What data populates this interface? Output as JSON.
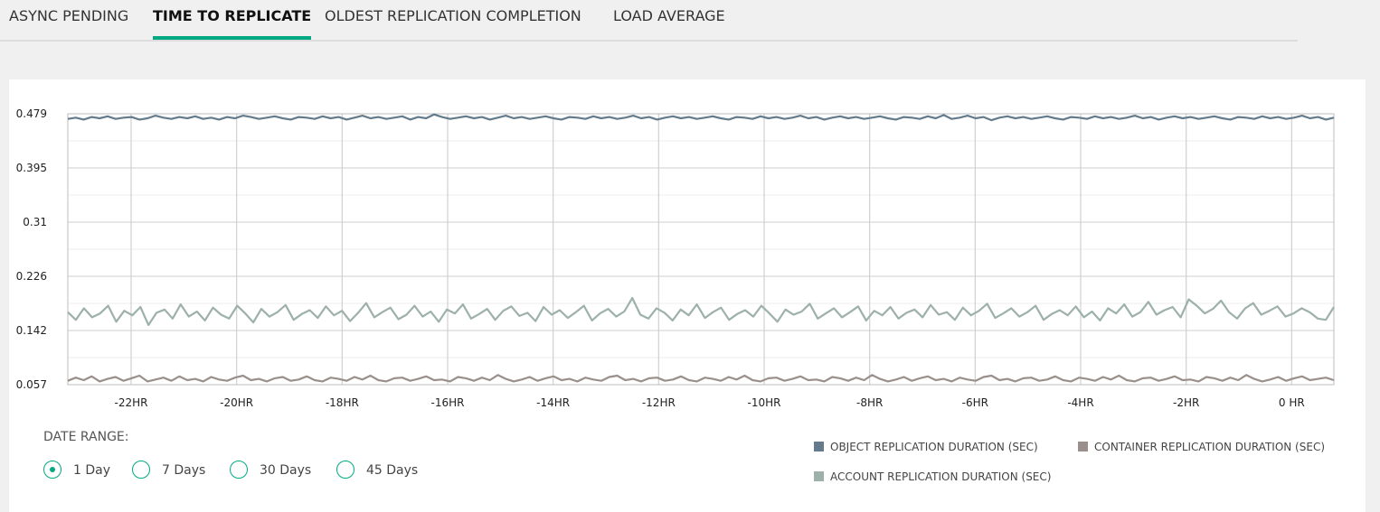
{
  "tabs": [
    {
      "label": "ASYNC PENDING",
      "active": false
    },
    {
      "label": "TIME TO REPLICATE",
      "active": true
    },
    {
      "label": "OLDEST REPLICATION COMPLETION",
      "active": false
    },
    {
      "label": "LOAD AVERAGE",
      "active": false
    }
  ],
  "date_range": {
    "label": "DATE RANGE:",
    "options": [
      {
        "label": "1 Day",
        "selected": true
      },
      {
        "label": "7 Days",
        "selected": false
      },
      {
        "label": "30 Days",
        "selected": false
      },
      {
        "label": "45 Days",
        "selected": false
      }
    ]
  },
  "colors": {
    "accent": "#01a982",
    "object": "#647b8c",
    "container": "#9a8f8a",
    "account": "#9db0aa"
  },
  "chart_data": {
    "type": "line",
    "title": "",
    "xlabel": "",
    "ylabel": "",
    "x_range_hours": [
      -23.2,
      0.8
    ],
    "ylim": [
      0.057,
      0.479
    ],
    "y_ticks": [
      "0.479",
      "0.395",
      "0.31",
      "0.226",
      "0.142",
      "0.057"
    ],
    "x_ticks": [
      {
        "hour": -22,
        "label": "-22HR"
      },
      {
        "hour": -20,
        "label": "-20HR"
      },
      {
        "hour": -18,
        "label": "-18HR"
      },
      {
        "hour": -16,
        "label": "-16HR"
      },
      {
        "hour": -14,
        "label": "-14HR"
      },
      {
        "hour": -12,
        "label": "-12HR"
      },
      {
        "hour": -10,
        "label": "-10HR"
      },
      {
        "hour": -8,
        "label": "-8HR"
      },
      {
        "hour": -6,
        "label": "-6HR"
      },
      {
        "hour": -4,
        "label": "-4HR"
      },
      {
        "hour": -2,
        "label": "-2HR"
      },
      {
        "hour": 0,
        "label": "0 HR"
      }
    ],
    "grid": true,
    "legend_position": "bottom-right",
    "series": [
      {
        "name": "OBJECT REPLICATION DURATION (SEC)",
        "color": "#647b8c",
        "values": [
          0.471,
          0.473,
          0.47,
          0.474,
          0.472,
          0.475,
          0.471,
          0.473,
          0.474,
          0.47,
          0.472,
          0.476,
          0.473,
          0.471,
          0.474,
          0.472,
          0.475,
          0.471,
          0.473,
          0.47,
          0.474,
          0.472,
          0.476,
          0.474,
          0.471,
          0.473,
          0.475,
          0.472,
          0.47,
          0.474,
          0.473,
          0.471,
          0.475,
          0.472,
          0.474,
          0.47,
          0.473,
          0.476,
          0.472,
          0.474,
          0.471,
          0.473,
          0.475,
          0.47,
          0.474,
          0.472,
          0.478,
          0.474,
          0.471,
          0.473,
          0.475,
          0.472,
          0.474,
          0.47,
          0.473,
          0.476,
          0.472,
          0.474,
          0.471,
          0.473,
          0.475,
          0.472,
          0.47,
          0.474,
          0.473,
          0.471,
          0.475,
          0.472,
          0.474,
          0.471,
          0.473,
          0.476,
          0.472,
          0.474,
          0.47,
          0.473,
          0.475,
          0.472,
          0.474,
          0.471,
          0.473,
          0.475,
          0.472,
          0.47,
          0.474,
          0.473,
          0.471,
          0.475,
          0.472,
          0.474,
          0.471,
          0.473,
          0.476,
          0.472,
          0.474,
          0.47,
          0.473,
          0.475,
          0.472,
          0.474,
          0.471,
          0.473,
          0.475,
          0.472,
          0.47,
          0.474,
          0.473,
          0.471,
          0.475,
          0.472,
          0.477,
          0.471,
          0.473,
          0.476,
          0.472,
          0.474,
          0.469,
          0.473,
          0.475,
          0.472,
          0.474,
          0.471,
          0.473,
          0.475,
          0.472,
          0.47,
          0.474,
          0.473,
          0.471,
          0.475,
          0.472,
          0.474,
          0.471,
          0.473,
          0.476,
          0.472,
          0.474,
          0.47,
          0.473,
          0.475,
          0.472,
          0.474,
          0.471,
          0.473,
          0.475,
          0.472,
          0.47,
          0.474,
          0.473,
          0.471,
          0.475,
          0.472,
          0.474,
          0.471,
          0.473,
          0.476,
          0.472,
          0.474,
          0.47,
          0.473
        ]
      },
      {
        "name": "CONTAINER REPLICATION DURATION (SEC)",
        "color": "#9a8f8a",
        "values": [
          0.063,
          0.068,
          0.064,
          0.07,
          0.062,
          0.066,
          0.069,
          0.063,
          0.067,
          0.071,
          0.062,
          0.065,
          0.068,
          0.063,
          0.07,
          0.064,
          0.066,
          0.062,
          0.069,
          0.065,
          0.063,
          0.068,
          0.071,
          0.064,
          0.066,
          0.062,
          0.067,
          0.069,
          0.063,
          0.065,
          0.07,
          0.064,
          0.062,
          0.068,
          0.066,
          0.063,
          0.069,
          0.065,
          0.071,
          0.064,
          0.062,
          0.067,
          0.068,
          0.063,
          0.066,
          0.07,
          0.064,
          0.065,
          0.062,
          0.069,
          0.067,
          0.063,
          0.068,
          0.064,
          0.072,
          0.066,
          0.062,
          0.065,
          0.069,
          0.063,
          0.067,
          0.07,
          0.064,
          0.066,
          0.062,
          0.068,
          0.065,
          0.063,
          0.069,
          0.071,
          0.064,
          0.066,
          0.062,
          0.067,
          0.068,
          0.063,
          0.065,
          0.07,
          0.064,
          0.062,
          0.068,
          0.066,
          0.063,
          0.069,
          0.065,
          0.071,
          0.064,
          0.062,
          0.067,
          0.068,
          0.063,
          0.066,
          0.07,
          0.064,
          0.065,
          0.062,
          0.069,
          0.067,
          0.063,
          0.068,
          0.064,
          0.072,
          0.066,
          0.062,
          0.065,
          0.069,
          0.063,
          0.067,
          0.07,
          0.064,
          0.066,
          0.062,
          0.068,
          0.065,
          0.063,
          0.069,
          0.071,
          0.064,
          0.066,
          0.062,
          0.067,
          0.068,
          0.063,
          0.065,
          0.07,
          0.064,
          0.062,
          0.068,
          0.066,
          0.063,
          0.069,
          0.065,
          0.071,
          0.064,
          0.062,
          0.067,
          0.068,
          0.063,
          0.066,
          0.07,
          0.064,
          0.065,
          0.062,
          0.069,
          0.067,
          0.063,
          0.068,
          0.064,
          0.072,
          0.066,
          0.062,
          0.065,
          0.069,
          0.063,
          0.067,
          0.07,
          0.064,
          0.066,
          0.068,
          0.064
        ]
      },
      {
        "name": "ACCOUNT REPLICATION DURATION (SEC)",
        "color": "#9db0aa",
        "values": [
          0.17,
          0.158,
          0.176,
          0.162,
          0.168,
          0.18,
          0.155,
          0.172,
          0.165,
          0.178,
          0.15,
          0.169,
          0.174,
          0.16,
          0.182,
          0.163,
          0.171,
          0.157,
          0.177,
          0.166,
          0.16,
          0.18,
          0.168,
          0.154,
          0.175,
          0.163,
          0.17,
          0.181,
          0.158,
          0.167,
          0.173,
          0.161,
          0.179,
          0.165,
          0.172,
          0.156,
          0.169,
          0.184,
          0.162,
          0.17,
          0.177,
          0.159,
          0.166,
          0.18,
          0.163,
          0.171,
          0.155,
          0.174,
          0.168,
          0.182,
          0.16,
          0.167,
          0.175,
          0.158,
          0.172,
          0.179,
          0.164,
          0.169,
          0.156,
          0.178,
          0.166,
          0.173,
          0.161,
          0.17,
          0.18,
          0.157,
          0.168,
          0.175,
          0.163,
          0.171,
          0.192,
          0.166,
          0.16,
          0.176,
          0.169,
          0.157,
          0.174,
          0.165,
          0.182,
          0.161,
          0.17,
          0.177,
          0.158,
          0.167,
          0.173,
          0.163,
          0.18,
          0.168,
          0.155,
          0.174,
          0.166,
          0.171,
          0.183,
          0.16,
          0.168,
          0.176,
          0.162,
          0.17,
          0.179,
          0.157,
          0.172,
          0.165,
          0.178,
          0.16,
          0.169,
          0.174,
          0.162,
          0.181,
          0.166,
          0.17,
          0.158,
          0.177,
          0.165,
          0.172,
          0.183,
          0.161,
          0.168,
          0.176,
          0.163,
          0.17,
          0.18,
          0.158,
          0.167,
          0.173,
          0.165,
          0.179,
          0.162,
          0.171,
          0.157,
          0.176,
          0.168,
          0.182,
          0.163,
          0.17,
          0.186,
          0.166,
          0.173,
          0.178,
          0.162,
          0.19,
          0.18,
          0.168,
          0.175,
          0.188,
          0.17,
          0.16,
          0.176,
          0.184,
          0.166,
          0.172,
          0.179,
          0.163,
          0.168,
          0.176,
          0.17,
          0.16,
          0.158,
          0.178
        ]
      }
    ]
  }
}
